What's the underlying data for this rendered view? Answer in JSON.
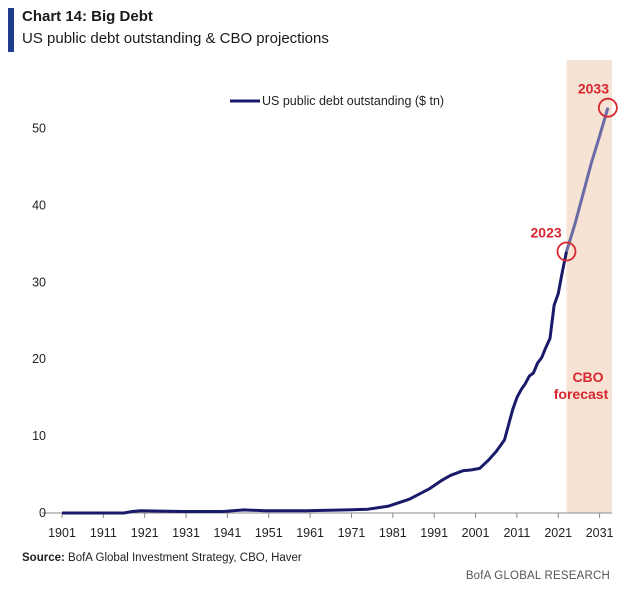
{
  "header": {
    "title": "Chart 14: Big Debt",
    "subtitle": "US public debt outstanding & CBO projections"
  },
  "footer": {
    "source_label": "Source:",
    "source_text": "BofA Global Investment Strategy, CBO, Haver",
    "brand": "BofA GLOBAL RESEARCH"
  },
  "annotations": {
    "start": "2023",
    "end": "2033",
    "forecast_line1": "CBO",
    "forecast_line2": "forecast"
  },
  "colors": {
    "line": "#1a1a6b",
    "forecast_line": "#6a6aa6",
    "forecast_band": "#f7e3d3",
    "annotation": "#d7262f",
    "title_bar": "#1f3c8f"
  },
  "chart_data": {
    "type": "line",
    "title": "",
    "xlabel": "",
    "ylabel": "",
    "xlim": [
      1901,
      2034
    ],
    "ylim": [
      0,
      55
    ],
    "x_ticks": [
      1901,
      1911,
      1921,
      1931,
      1941,
      1951,
      1961,
      1971,
      1981,
      1991,
      2001,
      2011,
      2021,
      2031
    ],
    "y_ticks": [
      0,
      10,
      20,
      30,
      40,
      50
    ],
    "legend": "top-center",
    "forecast_range": [
      2023,
      2034
    ],
    "series": [
      {
        "name": "US public debt outstanding ($ tn)",
        "x": [
          1901,
          1916,
          1918,
          1920,
          1930,
          1940,
          1945,
          1950,
          1960,
          1970,
          1975,
          1980,
          1985,
          1990,
          1993,
          1995,
          1998,
          2000,
          2002,
          2004,
          2006,
          2008,
          2009,
          2010,
          2011,
          2012,
          2013,
          2014,
          2015,
          2016,
          2017,
          2018,
          2019,
          2020,
          2021,
          2022,
          2023,
          2025,
          2027,
          2029,
          2031,
          2033
        ],
        "y": [
          0.0,
          0.0,
          0.2,
          0.3,
          0.2,
          0.2,
          0.4,
          0.3,
          0.3,
          0.4,
          0.5,
          0.9,
          1.8,
          3.2,
          4.3,
          4.9,
          5.5,
          5.6,
          5.8,
          6.8,
          8.0,
          9.5,
          11.5,
          13.5,
          15.0,
          16.0,
          16.8,
          17.8,
          18.2,
          19.5,
          20.2,
          21.5,
          22.7,
          27.0,
          28.5,
          31.4,
          34.0,
          37.5,
          41.5,
          45.5,
          49.0,
          52.7
        ]
      }
    ]
  }
}
